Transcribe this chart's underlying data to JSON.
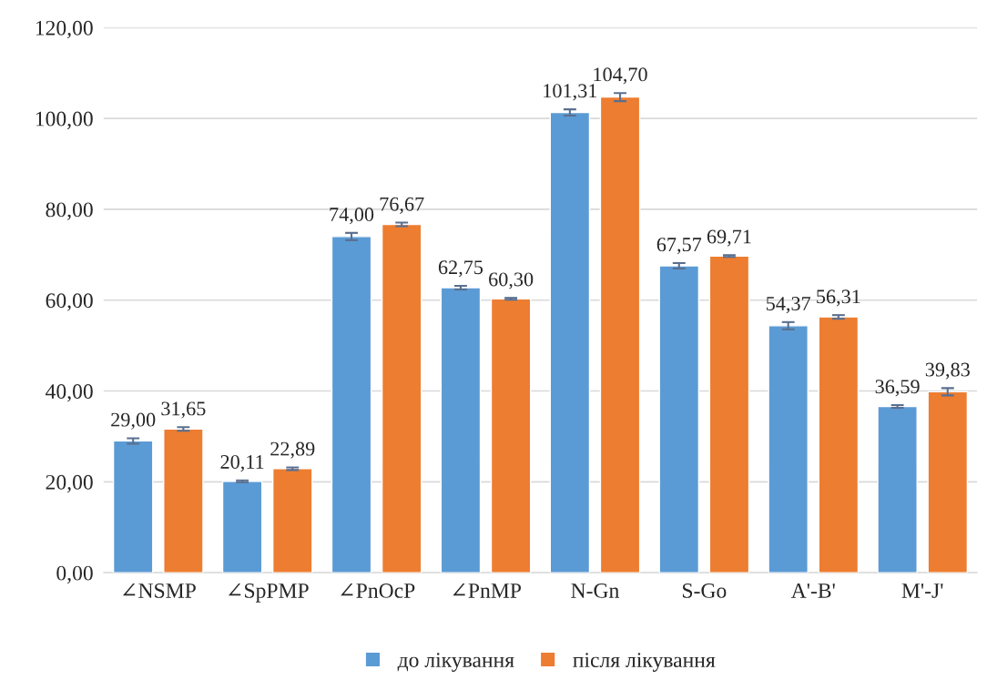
{
  "chart_data": {
    "type": "bar",
    "categories": [
      "∠NSMP",
      "∠SpPMP",
      "∠PnOcP",
      "∠PnMP",
      "N-Gn",
      "S-Go",
      "A'-B'",
      "M'-J'"
    ],
    "series": [
      {
        "name": "до лікування",
        "color": "#5b9bd5",
        "values": [
          29.0,
          20.11,
          74.0,
          62.75,
          101.31,
          67.57,
          54.37,
          36.59
        ],
        "errors": [
          0.6,
          0.2,
          0.8,
          0.4,
          0.7,
          0.6,
          0.8,
          0.3
        ],
        "value_labels": [
          "29,00",
          "20,11",
          "74,00",
          "62,75",
          "101,31",
          "67,57",
          "54,37",
          "36,59"
        ]
      },
      {
        "name": "після лікування",
        "color": "#ed7d31",
        "values": [
          31.65,
          22.89,
          76.67,
          60.3,
          104.7,
          69.71,
          56.31,
          39.83
        ],
        "errors": [
          0.4,
          0.3,
          0.4,
          0.2,
          0.9,
          0.2,
          0.4,
          0.8
        ],
        "value_labels": [
          "31,65",
          "22,89",
          "76,67",
          "60,30",
          "104,70",
          "69,71",
          "56,31",
          "39,83"
        ]
      }
    ],
    "ylim": [
      0,
      120
    ],
    "yticks": [
      {
        "value": 0,
        "label": "0,00"
      },
      {
        "value": 20,
        "label": "20,00"
      },
      {
        "value": 40,
        "label": "40,00"
      },
      {
        "value": 60,
        "label": "60,00"
      },
      {
        "value": 80,
        "label": "80,00"
      },
      {
        "value": 100,
        "label": "100,00"
      },
      {
        "value": 120,
        "label": "120,00"
      }
    ],
    "grid": "y",
    "legend": "bottom"
  }
}
